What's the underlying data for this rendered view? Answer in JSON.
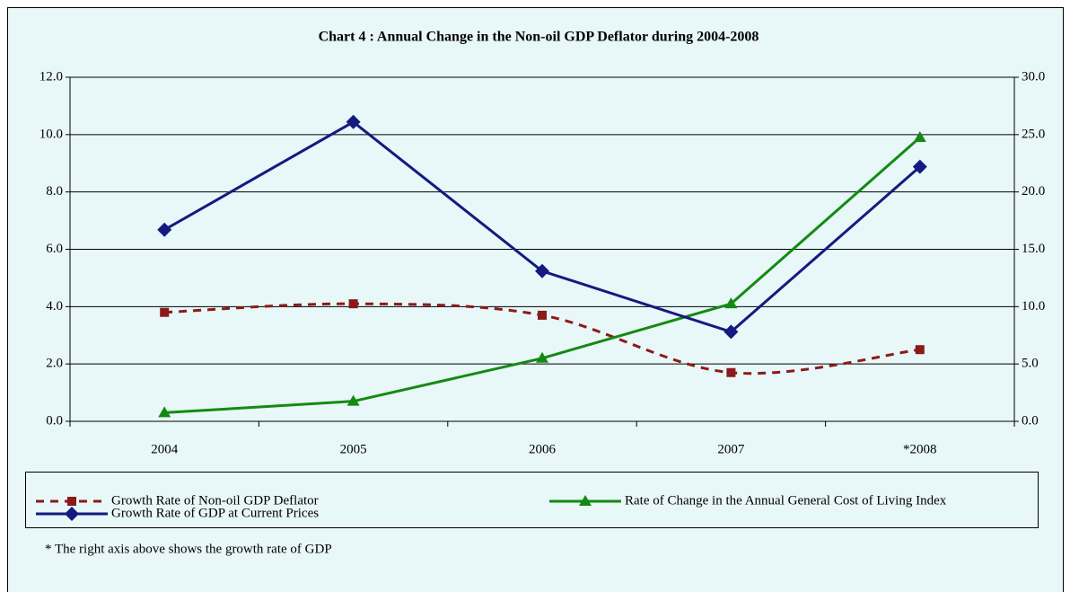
{
  "chart_data": {
    "type": "line",
    "title": "Chart 4 : Annual Change in the Non-oil GDP Deflator during 2004-2008",
    "note": "* The right axis above shows the growth rate of GDP",
    "categories": [
      "2004",
      "2005",
      "2006",
      "2007",
      "*2008"
    ],
    "series": [
      {
        "name": "Growth Rate of Non-oil GDP Deflator",
        "color": "#8b1a1a",
        "dashed": true,
        "smooth": true,
        "marker": "square",
        "values": [
          3.8,
          4.1,
          3.7,
          1.7,
          2.5
        ]
      },
      {
        "name": "Rate of Change in the Annual General Cost of Living Index",
        "color": "#138a13",
        "marker": "triangle",
        "values": [
          0.3,
          0.7,
          2.2,
          4.1,
          9.9
        ]
      },
      {
        "name": "Growth Rate of GDP at Current Prices",
        "color": "#141a80",
        "marker": "diamond",
        "axis": "y2",
        "values": [
          16.7,
          26.1,
          13.1,
          7.8,
          22.2
        ]
      }
    ],
    "ylim": [
      0,
      12
    ],
    "yticks": [
      {
        "value": 0,
        "label": "0.0"
      },
      {
        "value": 2,
        "label": "2.0"
      },
      {
        "value": 4,
        "label": "4.0"
      },
      {
        "value": 6,
        "label": "6.0"
      },
      {
        "value": 8,
        "label": "8.0"
      },
      {
        "value": 10,
        "label": "10.0"
      },
      {
        "value": 12,
        "label": "12.0"
      }
    ],
    "y2lim": [
      0,
      30
    ],
    "y2ticks": [
      {
        "value": 0,
        "label": "0.0"
      },
      {
        "value": 5,
        "label": "5.0"
      },
      {
        "value": 10,
        "label": "10.0"
      },
      {
        "value": 15,
        "label": "15.0"
      },
      {
        "value": 20,
        "label": "20.0"
      },
      {
        "value": 25,
        "label": "25.0"
      },
      {
        "value": 30,
        "label": "30.0"
      }
    ],
    "grid": true,
    "legend": "bottom"
  }
}
